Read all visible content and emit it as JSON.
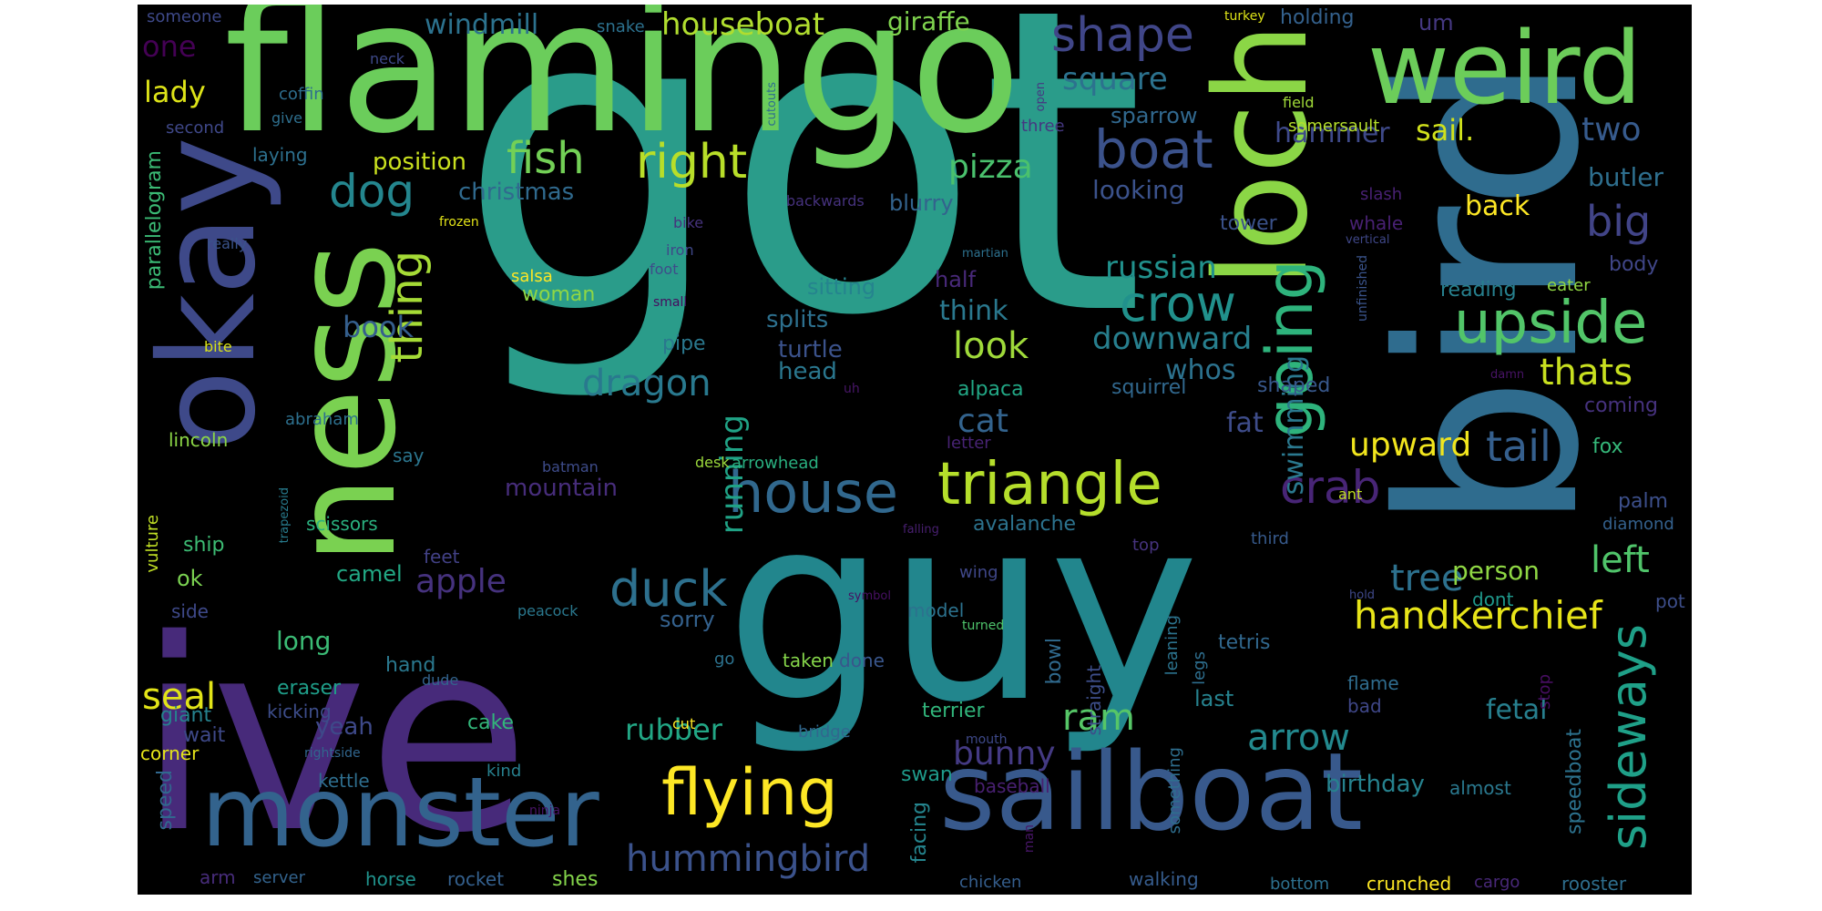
{
  "words": [
    {
      "text": "got",
      "color": "#2a9c8a"
    },
    {
      "text": "guy",
      "color": "#22868d"
    },
    {
      "text": "ive",
      "color": "#472a7a"
    },
    {
      "text": "bird",
      "color": "#2f6c8e"
    },
    {
      "text": "flamingo",
      "color": "#6bcd5b"
    },
    {
      "text": "loch",
      "color": "#8bd646"
    },
    {
      "text": "ness",
      "color": "#7ad151"
    },
    {
      "text": "okay",
      "color": "#3e4989"
    },
    {
      "text": "sailboat",
      "color": "#38598c"
    },
    {
      "text": "weird",
      "color": "#6ccd5a"
    },
    {
      "text": "monster",
      "color": "#33638d"
    },
    {
      "text": "going",
      "color": "#2eb37c"
    },
    {
      "text": "flying",
      "color": "#fde725"
    },
    {
      "text": "triangle",
      "color": "#b5de2b"
    },
    {
      "text": "upside",
      "color": "#52c569"
    },
    {
      "text": "house",
      "color": "#31688e"
    },
    {
      "text": "boat",
      "color": "#3b528b"
    },
    {
      "text": "sideways",
      "color": "#1fa088"
    },
    {
      "text": "duck",
      "color": "#2d708e"
    },
    {
      "text": "crow",
      "color": "#21918c"
    },
    {
      "text": "shape",
      "color": "#404688"
    },
    {
      "text": "right",
      "color": "#b8de29"
    },
    {
      "text": "handkerchief",
      "color": "#e7e419"
    },
    {
      "text": "crab",
      "color": "#482576"
    },
    {
      "text": "dog",
      "color": "#24868e"
    },
    {
      "text": "fish",
      "color": "#73d056"
    },
    {
      "text": "thing",
      "color": "#a5db36"
    },
    {
      "text": "tail",
      "color": "#355f8d"
    },
    {
      "text": "big",
      "color": "#414487"
    },
    {
      "text": "hummingbird",
      "color": "#3b528b"
    },
    {
      "text": "arrow",
      "color": "#23898e"
    },
    {
      "text": "dragon",
      "color": "#29798e"
    },
    {
      "text": "look",
      "color": "#9fda3a"
    },
    {
      "text": "tree",
      "color": "#2d718e"
    },
    {
      "text": "seal",
      "color": "#e2e418"
    },
    {
      "text": "apple",
      "color": "#46327e"
    },
    {
      "text": "thats",
      "color": "#c8e020"
    },
    {
      "text": "cat",
      "color": "#33638d"
    },
    {
      "text": "pizza",
      "color": "#4ac16d"
    },
    {
      "text": "running",
      "color": "#20a386"
    },
    {
      "text": "ram",
      "color": "#56c667"
    },
    {
      "text": "upward",
      "color": "#f1e51d"
    },
    {
      "text": "downward",
      "color": "#277f8e"
    },
    {
      "text": "russian",
      "color": "#21918c"
    },
    {
      "text": "left",
      "color": "#50c46a"
    },
    {
      "text": "two",
      "color": "#375b8d"
    },
    {
      "text": "square",
      "color": "#2c728e"
    },
    {
      "text": "bunny",
      "color": "#443a83"
    },
    {
      "text": "houseboat",
      "color": "#b0dd2f"
    },
    {
      "text": "swimming",
      "color": "#2a788e"
    },
    {
      "text": "rubber",
      "color": "#22a785"
    },
    {
      "text": "book",
      "color": "#355f8d"
    },
    {
      "text": "sail.",
      "color": "#d0e11c"
    },
    {
      "text": "lady",
      "color": "#dde318"
    },
    {
      "text": "one",
      "color": "#440154"
    },
    {
      "text": "windmill",
      "color": "#2c728e"
    },
    {
      "text": "hammer",
      "color": "#3e4989"
    },
    {
      "text": "think",
      "color": "#2a788e"
    },
    {
      "text": "whos",
      "color": "#2c728e"
    },
    {
      "text": "fat",
      "color": "#3e4c8a"
    },
    {
      "text": "giraffe",
      "color": "#7fd34e"
    },
    {
      "text": "long",
      "color": "#3bbb75"
    },
    {
      "text": "yeah",
      "color": "#3e4989"
    },
    {
      "text": "mountain",
      "color": "#472d7b"
    },
    {
      "text": "person",
      "color": "#8fd744"
    },
    {
      "text": "back",
      "color": "#fde725"
    },
    {
      "text": "butler",
      "color": "#2e6f8e"
    },
    {
      "text": "fetal",
      "color": "#277f8e"
    },
    {
      "text": "birthday",
      "color": "#26828e"
    },
    {
      "text": "speedboat",
      "color": "#2c728e"
    },
    {
      "text": "position",
      "color": "#cae11f"
    },
    {
      "text": "christmas",
      "color": "#306a8e"
    },
    {
      "text": "looking",
      "color": "#3b528b"
    },
    {
      "text": "sparrow",
      "color": "#31688e"
    },
    {
      "text": "sitting",
      "color": "#25848e"
    },
    {
      "text": "splits",
      "color": "#2d708e"
    },
    {
      "text": "turtle",
      "color": "#3b528b"
    },
    {
      "text": "head",
      "color": "#2a778e"
    },
    {
      "text": "blurry",
      "color": "#33638d"
    },
    {
      "text": "half",
      "color": "#482979"
    },
    {
      "text": "woman",
      "color": "#8fd744"
    },
    {
      "text": "salsa",
      "color": "#fde725"
    },
    {
      "text": "pipe",
      "color": "#2a788e"
    },
    {
      "text": "alpaca",
      "color": "#22a785"
    },
    {
      "text": "squirrel",
      "color": "#31688e"
    },
    {
      "text": "shaped",
      "color": "#38588c"
    },
    {
      "text": "coming",
      "color": "#46327e"
    },
    {
      "text": "fox",
      "color": "#35b779"
    },
    {
      "text": "palm",
      "color": "#3c4f8a"
    },
    {
      "text": "diamond",
      "color": "#34618d"
    },
    {
      "text": "dont",
      "color": "#1f988b"
    },
    {
      "text": "pot",
      "color": "#3d4e8a"
    },
    {
      "text": "tower",
      "color": "#3b528b"
    },
    {
      "text": "whale",
      "color": "#482173"
    },
    {
      "text": "reading",
      "color": "#27808e"
    },
    {
      "text": "body",
      "color": "#404688"
    },
    {
      "text": "eater",
      "color": "#90d743"
    },
    {
      "text": "ok",
      "color": "#7ad151"
    },
    {
      "text": "camel",
      "color": "#22a884"
    },
    {
      "text": "ship",
      "color": "#3dbc74"
    },
    {
      "text": "feet",
      "color": "#424186"
    },
    {
      "text": "avalanche",
      "color": "#2c738e"
    },
    {
      "text": "scissors",
      "color": "#2ab07f"
    },
    {
      "text": "model",
      "color": "#2c728e"
    },
    {
      "text": "sorry",
      "color": "#34618d"
    },
    {
      "text": "eraser",
      "color": "#1f9e89"
    },
    {
      "text": "cake",
      "color": "#32b67a"
    },
    {
      "text": "terrier",
      "color": "#31b57b"
    },
    {
      "text": "tetris",
      "color": "#31688e"
    },
    {
      "text": "last",
      "color": "#26828e"
    },
    {
      "text": "flame",
      "color": "#2f6c8e"
    },
    {
      "text": "bad",
      "color": "#3f4788"
    },
    {
      "text": "swan",
      "color": "#1f9a8a"
    },
    {
      "text": "hand",
      "color": "#2a788e"
    },
    {
      "text": "giant",
      "color": "#26828e"
    },
    {
      "text": "wait",
      "color": "#3e4989"
    },
    {
      "text": "kicking",
      "color": "#3d4d8a"
    },
    {
      "text": "corner",
      "color": "#e5e419"
    },
    {
      "text": "kettle",
      "color": "#2e6e8e"
    },
    {
      "text": "speed",
      "color": "#31688e"
    },
    {
      "text": "arm",
      "color": "#472c7a"
    },
    {
      "text": "server",
      "color": "#33638d"
    },
    {
      "text": "horse",
      "color": "#20928c"
    },
    {
      "text": "rocket",
      "color": "#34608d"
    },
    {
      "text": "shes",
      "color": "#84d44b"
    },
    {
      "text": "chicken",
      "color": "#355e8d"
    },
    {
      "text": "walking",
      "color": "#365c8d"
    },
    {
      "text": "bottom",
      "color": "#2d708e"
    },
    {
      "text": "crunched",
      "color": "#fde725"
    },
    {
      "text": "cargo",
      "color": "#482878"
    },
    {
      "text": "rooster",
      "color": "#2e6e8e"
    },
    {
      "text": "almost",
      "color": "#2a788e"
    },
    {
      "text": "baseball",
      "color": "#482071"
    },
    {
      "text": "facing",
      "color": "#25858e"
    },
    {
      "text": "someone",
      "color": "#3e4989"
    },
    {
      "text": "neck",
      "color": "#3e4989"
    },
    {
      "text": "coffin",
      "color": "#2e6e8e"
    },
    {
      "text": "second",
      "color": "#3f4889"
    },
    {
      "text": "give",
      "color": "#2e6f8e"
    },
    {
      "text": "laying",
      "color": "#2d708e"
    },
    {
      "text": "snake",
      "color": "#2c718e"
    },
    {
      "text": "um",
      "color": "#453882"
    },
    {
      "text": "field",
      "color": "#a0da39"
    },
    {
      "text": "somersault",
      "color": "#b5de2b"
    },
    {
      "text": "holding",
      "color": "#34618d"
    },
    {
      "text": "turkey",
      "color": "#dde318"
    },
    {
      "text": "three",
      "color": "#453781"
    },
    {
      "text": "open",
      "color": "#453781"
    },
    {
      "text": "cutouts",
      "color": "#2e6e8e"
    },
    {
      "text": "backwards",
      "color": "#46327e"
    },
    {
      "text": "bike",
      "color": "#46337e"
    },
    {
      "text": "frozen",
      "color": "#e3e418"
    },
    {
      "text": "really",
      "color": "#3a538b"
    },
    {
      "text": "iron",
      "color": "#3f4889"
    },
    {
      "text": "foot",
      "color": "#3e4c8a"
    },
    {
      "text": "small",
      "color": "#460b5e"
    },
    {
      "text": "martian",
      "color": "#2d718e"
    },
    {
      "text": "vertical",
      "color": "#3f4788"
    },
    {
      "text": "slash",
      "color": "#482173"
    },
    {
      "text": "unfinished",
      "color": "#3a548c"
    },
    {
      "text": "parallelogram",
      "color": "#3bbb75"
    },
    {
      "text": "bite",
      "color": "#dae319"
    },
    {
      "text": "abraham",
      "color": "#2d708e"
    },
    {
      "text": "lincoln",
      "color": "#8bd646"
    },
    {
      "text": "say",
      "color": "#2b758e"
    },
    {
      "text": "batman",
      "color": "#3e4c8a"
    },
    {
      "text": "uh",
      "color": "#481668"
    },
    {
      "text": "letter",
      "color": "#482374"
    },
    {
      "text": "desk",
      "color": "#9bd93c"
    },
    {
      "text": "arrowhead",
      "color": "#29af7f"
    },
    {
      "text": "damn",
      "color": "#471365"
    },
    {
      "text": "trapezoid",
      "color": "#287c8e"
    },
    {
      "text": "vulture",
      "color": "#c0df25"
    },
    {
      "text": "falling",
      "color": "#481f70"
    },
    {
      "text": "ant",
      "color": "#c2df23"
    },
    {
      "text": "third",
      "color": "#375a8c"
    },
    {
      "text": "top",
      "color": "#46337e"
    },
    {
      "text": "wing",
      "color": "#3f4788"
    },
    {
      "text": "hold",
      "color": "#3f4889"
    },
    {
      "text": "symbol",
      "color": "#471063"
    },
    {
      "text": "peacock",
      "color": "#2a788e"
    },
    {
      "text": "dude",
      "color": "#33638d"
    },
    {
      "text": "turned",
      "color": "#4ec36b"
    },
    {
      "text": "side",
      "color": "#3e4989"
    },
    {
      "text": "go",
      "color": "#2c728e"
    },
    {
      "text": "taken",
      "color": "#85d54a"
    },
    {
      "text": "done",
      "color": "#39568c"
    },
    {
      "text": "bowl",
      "color": "#306a8e"
    },
    {
      "text": "straight",
      "color": "#3d4e8a"
    },
    {
      "text": "leaning",
      "color": "#2c738e"
    },
    {
      "text": "legs",
      "color": "#2e6e8e"
    },
    {
      "text": "stop",
      "color": "#470e61"
    },
    {
      "text": "rightside",
      "color": "#31668e"
    },
    {
      "text": "mouth",
      "color": "#3e4989"
    },
    {
      "text": "bridge",
      "color": "#31688e"
    },
    {
      "text": "cut",
      "color": "#fde725"
    },
    {
      "text": "kind",
      "color": "#27808e"
    },
    {
      "text": "ninja",
      "color": "#481467"
    },
    {
      "text": "man",
      "color": "#481668"
    },
    {
      "text": "something",
      "color": "#2e6e8e"
    }
  ]
}
